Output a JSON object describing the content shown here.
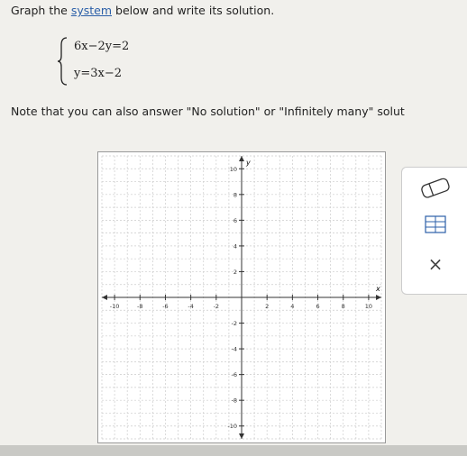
{
  "prompt": {
    "before": "Graph the",
    "link": "system",
    "after": "below and write its solution."
  },
  "system": {
    "equations": [
      "6x−2y=2",
      "y=3x−2"
    ]
  },
  "note": "Note that you can also answer \"No solution\" or \"Infinitely many\" solut",
  "graph": {
    "xlim": [
      -11,
      11
    ],
    "ylim": [
      -11,
      11
    ],
    "xticks": [
      -10,
      -8,
      -6,
      -4,
      -2,
      2,
      4,
      6,
      8,
      10
    ],
    "yticks": [
      10,
      8,
      6,
      4,
      2,
      -2,
      -4,
      -6,
      -8,
      -10
    ],
    "xlabel": "x",
    "ylabel": "y",
    "grid": true
  },
  "tools": {
    "close": "×"
  }
}
